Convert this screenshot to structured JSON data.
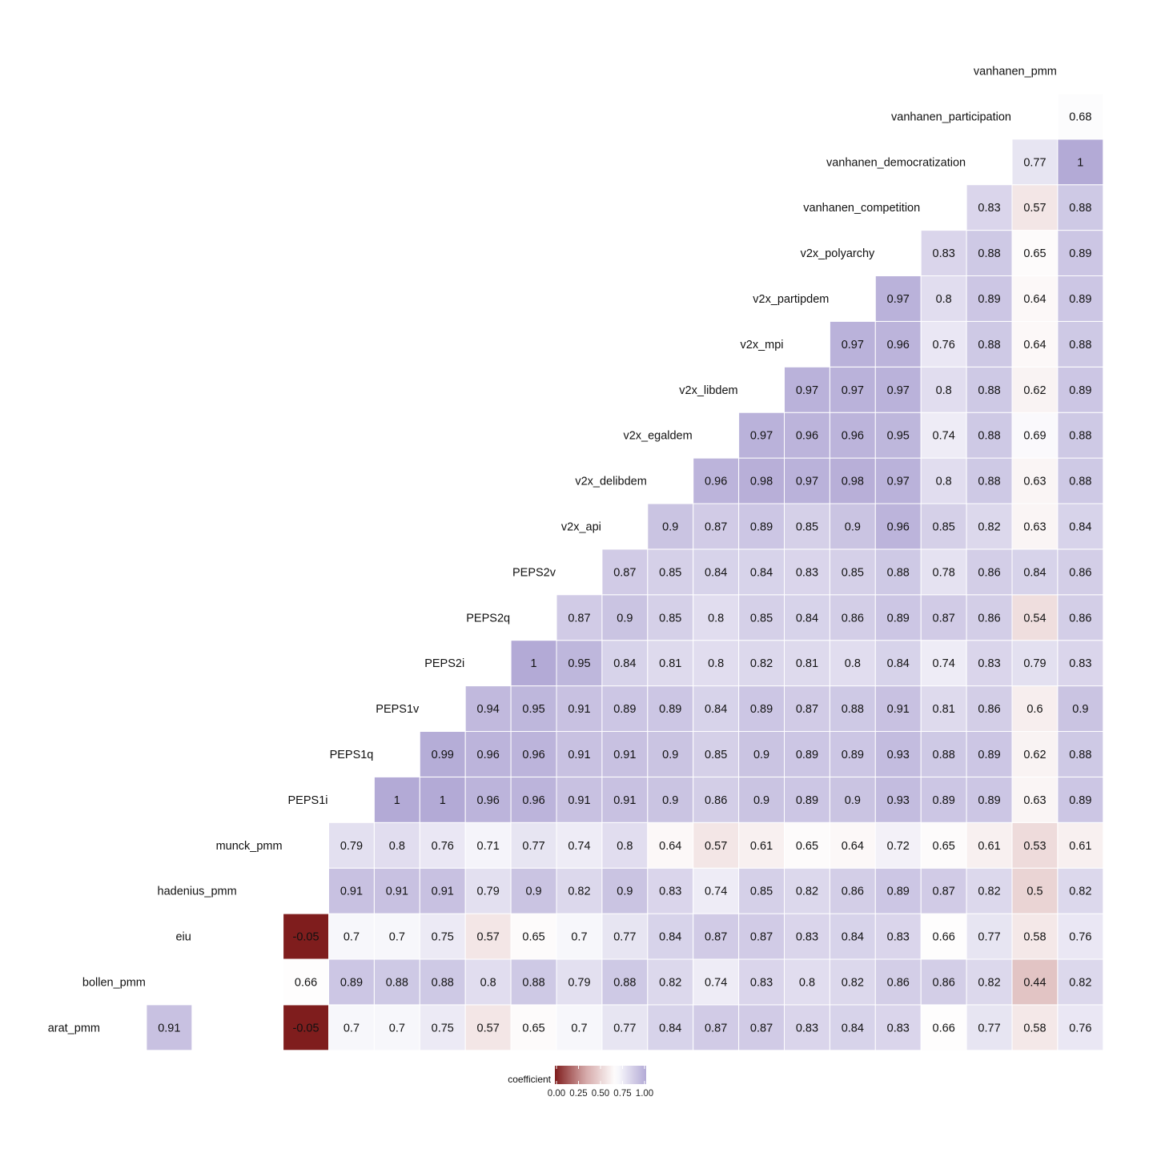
{
  "chart_data": {
    "type": "heatmap",
    "title": "",
    "columns": [
      "arat_pmm",
      "bollen_pmm",
      "eiu",
      "hadenius_pmm",
      "munck_pmm",
      "PEPS1i",
      "PEPS1q",
      "PEPS1v",
      "PEPS2i",
      "PEPS2q",
      "PEPS2v",
      "v2x_api",
      "v2x_delibdem",
      "v2x_egaldem",
      "v2x_libdem",
      "v2x_mpi",
      "v2x_partipdem",
      "v2x_polyarchy",
      "vanhanen_competition",
      "vanhanen_democratization",
      "vanhanen_participation",
      "vanhanen_pmm"
    ],
    "rows": [
      {
        "label": "arat_pmm",
        "values": [
          null,
          0.91,
          null,
          null,
          -0.05,
          0.7,
          0.7,
          0.75,
          0.57,
          0.65,
          0.7,
          0.77,
          0.84,
          0.87,
          0.87,
          0.83,
          0.84,
          0.83,
          0.66,
          0.77,
          0.58,
          0.76
        ]
      },
      {
        "label": "bollen_pmm",
        "values": [
          null,
          null,
          null,
          null,
          0.66,
          0.89,
          0.88,
          0.88,
          0.8,
          0.88,
          0.79,
          0.88,
          0.82,
          0.74,
          0.83,
          0.8,
          0.82,
          0.86,
          0.86,
          0.82,
          0.44,
          0.82
        ]
      },
      {
        "label": "eiu",
        "values": [
          null,
          null,
          null,
          null,
          -0.05,
          0.7,
          0.7,
          0.75,
          0.57,
          0.65,
          0.7,
          0.77,
          0.84,
          0.87,
          0.87,
          0.83,
          0.84,
          0.83,
          0.66,
          0.77,
          0.58,
          0.76
        ]
      },
      {
        "label": "hadenius_pmm",
        "values": [
          null,
          null,
          null,
          null,
          null,
          0.91,
          0.91,
          0.91,
          0.79,
          0.9,
          0.82,
          0.9,
          0.83,
          0.74,
          0.85,
          0.82,
          0.86,
          0.89,
          0.87,
          0.82,
          0.5,
          0.82
        ]
      },
      {
        "label": "munck_pmm",
        "values": [
          null,
          null,
          null,
          null,
          null,
          0.79,
          0.8,
          0.76,
          0.71,
          0.77,
          0.74,
          0.8,
          0.64,
          0.57,
          0.61,
          0.65,
          0.64,
          0.72,
          0.65,
          0.61,
          0.53,
          0.61
        ]
      },
      {
        "label": "PEPS1i",
        "values": [
          null,
          null,
          null,
          null,
          null,
          null,
          1,
          1,
          0.96,
          0.96,
          0.91,
          0.91,
          0.9,
          0.86,
          0.9,
          0.89,
          0.9,
          0.93,
          0.89,
          0.89,
          0.63,
          0.89
        ]
      },
      {
        "label": "PEPS1q",
        "values": [
          null,
          null,
          null,
          null,
          null,
          null,
          null,
          0.99,
          0.96,
          0.96,
          0.91,
          0.91,
          0.9,
          0.85,
          0.9,
          0.89,
          0.89,
          0.93,
          0.88,
          0.89,
          0.62,
          0.88
        ]
      },
      {
        "label": "PEPS1v",
        "values": [
          null,
          null,
          null,
          null,
          null,
          null,
          null,
          null,
          0.94,
          0.95,
          0.91,
          0.89,
          0.89,
          0.84,
          0.89,
          0.87,
          0.88,
          0.91,
          0.81,
          0.86,
          0.6,
          0.9
        ]
      },
      {
        "label": "PEPS2i",
        "values": [
          null,
          null,
          null,
          null,
          null,
          null,
          null,
          null,
          null,
          1,
          0.95,
          0.84,
          0.81,
          0.8,
          0.82,
          0.81,
          0.8,
          0.84,
          0.74,
          0.83,
          0.79,
          0.83
        ]
      },
      {
        "label": "PEPS2q",
        "values": [
          null,
          null,
          null,
          null,
          null,
          null,
          null,
          null,
          null,
          null,
          0.87,
          0.9,
          0.85,
          0.8,
          0.85,
          0.84,
          0.86,
          0.89,
          0.87,
          0.86,
          0.54,
          0.86
        ]
      },
      {
        "label": "PEPS2v",
        "values": [
          null,
          null,
          null,
          null,
          null,
          null,
          null,
          null,
          null,
          null,
          null,
          0.87,
          0.85,
          0.84,
          0.84,
          0.83,
          0.85,
          0.88,
          0.78,
          0.86,
          0.84,
          0.86
        ]
      },
      {
        "label": "v2x_api",
        "values": [
          null,
          null,
          null,
          null,
          null,
          null,
          null,
          null,
          null,
          null,
          null,
          null,
          0.9,
          0.87,
          0.89,
          0.85,
          0.9,
          0.96,
          0.85,
          0.82,
          0.63,
          0.84
        ]
      },
      {
        "label": "v2x_delibdem",
        "values": [
          null,
          null,
          null,
          null,
          null,
          null,
          null,
          null,
          null,
          null,
          null,
          null,
          null,
          0.96,
          0.98,
          0.97,
          0.98,
          0.97,
          0.8,
          0.88,
          0.63,
          0.88
        ]
      },
      {
        "label": "v2x_egaldem",
        "values": [
          null,
          null,
          null,
          null,
          null,
          null,
          null,
          null,
          null,
          null,
          null,
          null,
          null,
          null,
          0.97,
          0.96,
          0.96,
          0.95,
          0.74,
          0.88,
          0.69,
          0.88
        ]
      },
      {
        "label": "v2x_libdem",
        "values": [
          null,
          null,
          null,
          null,
          null,
          null,
          null,
          null,
          null,
          null,
          null,
          null,
          null,
          null,
          null,
          0.97,
          0.97,
          0.97,
          0.8,
          0.88,
          0.62,
          0.89
        ]
      },
      {
        "label": "v2x_mpi",
        "values": [
          null,
          null,
          null,
          null,
          null,
          null,
          null,
          null,
          null,
          null,
          null,
          null,
          null,
          null,
          null,
          null,
          0.97,
          0.96,
          0.76,
          0.88,
          0.64,
          0.88
        ]
      },
      {
        "label": "v2x_partipdem",
        "values": [
          null,
          null,
          null,
          null,
          null,
          null,
          null,
          null,
          null,
          null,
          null,
          null,
          null,
          null,
          null,
          null,
          null,
          0.97,
          0.8,
          0.89,
          0.64,
          0.89
        ]
      },
      {
        "label": "v2x_polyarchy",
        "values": [
          null,
          null,
          null,
          null,
          null,
          null,
          null,
          null,
          null,
          null,
          null,
          null,
          null,
          null,
          null,
          null,
          null,
          null,
          0.83,
          0.88,
          0.65,
          0.89
        ]
      },
      {
        "label": "vanhanen_competition",
        "values": [
          null,
          null,
          null,
          null,
          null,
          null,
          null,
          null,
          null,
          null,
          null,
          null,
          null,
          null,
          null,
          null,
          null,
          null,
          null,
          0.83,
          0.57,
          0.88
        ]
      },
      {
        "label": "vanhanen_democratization",
        "values": [
          null,
          null,
          null,
          null,
          null,
          null,
          null,
          null,
          null,
          null,
          null,
          null,
          null,
          null,
          null,
          null,
          null,
          null,
          null,
          null,
          0.77,
          1
        ]
      },
      {
        "label": "vanhanen_participation",
        "values": [
          null,
          null,
          null,
          null,
          null,
          null,
          null,
          null,
          null,
          null,
          null,
          null,
          null,
          null,
          null,
          null,
          null,
          null,
          null,
          null,
          null,
          0.68
        ]
      },
      {
        "label": "vanhanen_pmm",
        "values": [
          null,
          null,
          null,
          null,
          null,
          null,
          null,
          null,
          null,
          null,
          null,
          null,
          null,
          null,
          null,
          null,
          null,
          null,
          null,
          null,
          null,
          null
        ]
      }
    ],
    "value_labels_shown": true,
    "legend": {
      "title": "coefficient",
      "position": "bottom",
      "ticks": [
        "0.00",
        "0.25",
        "0.50",
        "0.75",
        "1.00"
      ],
      "range": [
        0,
        1
      ]
    },
    "colors": {
      "low": "#7f1d1d",
      "mid": "#ffffff",
      "high": "#b3aad6",
      "gradient_stops": [
        "#7f1d1d",
        "#d5a8a8",
        "#ffffff",
        "#b3aad6"
      ]
    }
  }
}
